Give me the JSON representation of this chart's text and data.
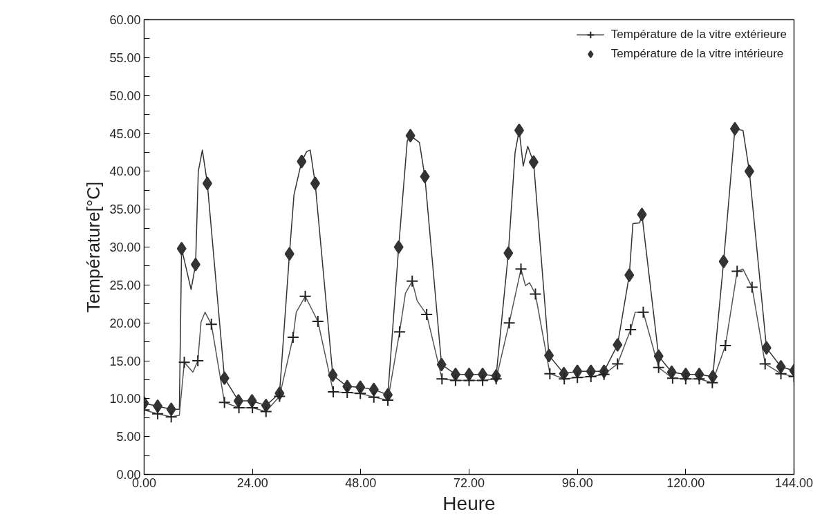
{
  "chart_data": {
    "type": "line",
    "xlabel": "Heure",
    "ylabel": "Température[°C]",
    "xlim": [
      0,
      144
    ],
    "ylim": [
      0,
      60
    ],
    "xticks": [
      {
        "value": 0,
        "label": "0.00"
      },
      {
        "value": 24,
        "label": "24.00"
      },
      {
        "value": 48,
        "label": "48.00"
      },
      {
        "value": 72,
        "label": "72.00"
      },
      {
        "value": 96,
        "label": "96.00"
      },
      {
        "value": 120,
        "label": "120.00"
      },
      {
        "value": 144,
        "label": "144.00"
      }
    ],
    "yticks": [
      {
        "value": 0,
        "label": "0.00"
      },
      {
        "value": 2.5,
        "label": null
      },
      {
        "value": 5,
        "label": "5.00"
      },
      {
        "value": 7.5,
        "label": null
      },
      {
        "value": 10,
        "label": "10.00"
      },
      {
        "value": 12.5,
        "label": null
      },
      {
        "value": 15,
        "label": "15.00"
      },
      {
        "value": 17.5,
        "label": null
      },
      {
        "value": 20,
        "label": "20.00"
      },
      {
        "value": 22.5,
        "label": null
      },
      {
        "value": 25,
        "label": "25.00"
      },
      {
        "value": 27.5,
        "label": null
      },
      {
        "value": 30,
        "label": "30.00"
      },
      {
        "value": 32.5,
        "label": null
      },
      {
        "value": 35,
        "label": "35.00"
      },
      {
        "value": 37.5,
        "label": null
      },
      {
        "value": 40,
        "label": "40.00"
      },
      {
        "value": 42.5,
        "label": null
      },
      {
        "value": 45,
        "label": "45.00"
      },
      {
        "value": 47.5,
        "label": null
      },
      {
        "value": 50,
        "label": "50.00"
      },
      {
        "value": 52.5,
        "label": null
      },
      {
        "value": 55,
        "label": "55.00"
      },
      {
        "value": 57.5,
        "label": null
      },
      {
        "value": 60,
        "label": "60.00"
      }
    ],
    "grid": false,
    "legend": "top right",
    "series": [
      {
        "marker": "none",
        "color": "#555555",
        "x": [
          0,
          3,
          6,
          7.8,
          8.9,
          10.8,
          11.9,
          12.6,
          13.5,
          14.9,
          17.8,
          21,
          24,
          27,
          30,
          33,
          33.7,
          35.7,
          38.5,
          41.9,
          45,
          47.9,
          50.9,
          54,
          56.6,
          57.9,
          59.4,
          60.5,
          62.6,
          66,
          69,
          72,
          75,
          78,
          80.9,
          83.5,
          84.5,
          85.4,
          86.7,
          89.9,
          93.1,
          96,
          99,
          101.9,
          104.9,
          107.8,
          108.8,
          110.6,
          114,
          117.1,
          120,
          123,
          125.9,
          128.8,
          131.4,
          132.7,
          134.7,
          137.6,
          141.1,
          144
        ],
        "values": [
          8.5,
          8.0,
          7.6,
          7.8,
          14.8,
          13.5,
          15.0,
          20.1,
          21.4,
          19.8,
          9.5,
          8.8,
          8.8,
          8.3,
          10.3,
          18.1,
          21.4,
          23.5,
          20.2,
          10.9,
          10.8,
          10.7,
          10.2,
          9.8,
          18.8,
          23.9,
          25.5,
          22.9,
          21.1,
          12.6,
          12.4,
          12.4,
          12.4,
          12.6,
          20.0,
          27.1,
          24.9,
          25.3,
          23.8,
          13.3,
          12.6,
          12.8,
          12.9,
          13.2,
          14.6,
          19.1,
          21.4,
          21.4,
          14.1,
          12.7,
          12.6,
          12.6,
          12.1,
          17.0,
          26.8,
          27.1,
          24.7,
          14.6,
          13.3,
          12.9
        ]
      },
      {
        "marker": "none",
        "color": "#333333",
        "x": [
          0,
          3,
          6,
          7.8,
          8.3,
          10.4,
          11.4,
          12.0,
          12.9,
          14,
          17.8,
          20.9,
          23.9,
          27,
          30,
          32.2,
          33.2,
          34.9,
          36.0,
          36.8,
          37.9,
          41.8,
          45,
          47.9,
          50.9,
          54,
          56.4,
          58.3,
          59,
          61,
          62.2,
          65.9,
          69,
          72,
          75,
          78,
          80.7,
          82.2,
          83.1,
          84.0,
          85.0,
          86.3,
          89.7,
          93,
          96,
          99,
          101.9,
          104.9,
          107.5,
          108.3,
          109.8,
          110.3,
          114,
          116.9,
          120,
          123,
          126,
          128.4,
          130.9,
          132.7,
          134.1,
          137.9,
          141.1,
          144
        ],
        "values": [
          9.4,
          9.0,
          8.6,
          8.6,
          29.8,
          24.4,
          27.7,
          40.0,
          42.8,
          38.4,
          12.7,
          9.7,
          9.7,
          9.1,
          10.7,
          29.1,
          36.9,
          41.3,
          42.6,
          42.8,
          38.4,
          13.1,
          11.6,
          11.5,
          11.2,
          10.5,
          30.0,
          44.0,
          44.7,
          43.8,
          39.3,
          14.5,
          13.2,
          13.2,
          13.2,
          13.0,
          29.2,
          42.5,
          45.4,
          40.7,
          43.3,
          41.2,
          15.7,
          13.3,
          13.6,
          13.6,
          13.6,
          17.1,
          26.3,
          33.1,
          33.2,
          34.3,
          15.6,
          13.5,
          13.2,
          13.2,
          12.9,
          28.1,
          45.6,
          45.4,
          40.0,
          16.7,
          14.2,
          13.7
        ]
      },
      {
        "type": "scatter",
        "name": "Température de la vitre extérieure",
        "marker": "cross",
        "color": "#222222",
        "x": [
          0,
          3,
          6,
          8.9,
          11.9,
          14.9,
          17.8,
          21,
          24,
          27,
          30,
          33,
          35.7,
          38.5,
          41.9,
          45,
          47.9,
          50.9,
          54,
          56.6,
          59.4,
          62.6,
          66,
          69,
          72,
          75,
          78,
          80.9,
          83.5,
          86.7,
          89.9,
          93.1,
          96,
          99,
          101.9,
          104.9,
          107.8,
          110.6,
          114,
          117.1,
          120,
          123,
          125.9,
          128.8,
          131.4,
          134.7,
          137.6,
          141.1,
          144
        ],
        "values": [
          8.5,
          8.0,
          7.6,
          14.8,
          15.0,
          19.8,
          9.5,
          8.8,
          8.8,
          8.3,
          10.3,
          18.1,
          23.5,
          20.2,
          10.9,
          10.8,
          10.7,
          10.2,
          9.8,
          18.8,
          25.5,
          21.1,
          12.6,
          12.4,
          12.4,
          12.4,
          12.6,
          20.0,
          27.1,
          23.8,
          13.3,
          12.6,
          12.8,
          12.9,
          13.2,
          14.6,
          19.1,
          21.4,
          14.1,
          12.7,
          12.6,
          12.6,
          12.1,
          17.0,
          26.8,
          24.7,
          14.6,
          13.3,
          12.9
        ]
      },
      {
        "type": "scatter",
        "name": "Température de la vitre intérieure",
        "marker": "diamond",
        "color": "#333333",
        "x": [
          0,
          3,
          6,
          8.3,
          11.4,
          14,
          17.8,
          20.9,
          23.9,
          27,
          30,
          32.2,
          34.9,
          37.9,
          41.8,
          45,
          47.9,
          50.9,
          54,
          56.4,
          59,
          62.2,
          65.9,
          69,
          72,
          75,
          78,
          80.7,
          83.1,
          86.3,
          89.7,
          93,
          96,
          99,
          101.9,
          104.9,
          107.5,
          110.3,
          114,
          116.9,
          120,
          123,
          126,
          128.4,
          130.9,
          134.1,
          137.9,
          141.1,
          144
        ],
        "values": [
          9.4,
          9.0,
          8.6,
          29.8,
          27.7,
          38.4,
          12.7,
          9.7,
          9.7,
          9.1,
          10.7,
          29.1,
          41.3,
          38.4,
          13.1,
          11.6,
          11.5,
          11.2,
          10.5,
          30.0,
          44.7,
          39.3,
          14.5,
          13.2,
          13.2,
          13.2,
          13.0,
          29.2,
          45.4,
          41.2,
          15.7,
          13.3,
          13.6,
          13.6,
          13.6,
          17.1,
          26.3,
          34.3,
          15.6,
          13.5,
          13.2,
          13.2,
          12.9,
          28.1,
          45.6,
          40.0,
          16.7,
          14.2,
          13.7
        ]
      }
    ]
  }
}
